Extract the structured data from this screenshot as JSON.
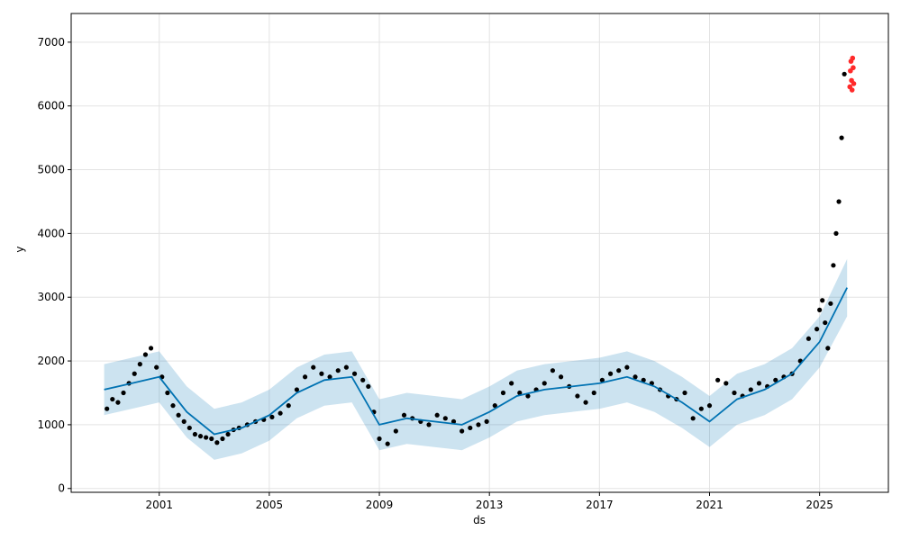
{
  "chart_data": {
    "type": "scatter",
    "title": "",
    "xlabel": "ds",
    "ylabel": "y",
    "xlim": [
      1997.8,
      2027.5
    ],
    "ylim": [
      -60,
      7450
    ],
    "x_ticks": [
      2001,
      2005,
      2009,
      2013,
      2017,
      2021,
      2025
    ],
    "y_ticks": [
      0,
      1000,
      2000,
      3000,
      4000,
      5000,
      6000,
      7000
    ],
    "grid": true,
    "legend": "none",
    "colors": {
      "observed": "#000000",
      "forecast_line": "#0072B2",
      "uncertainty_band": "#0072B2",
      "highlight": "#ff2a2a"
    },
    "series": [
      {
        "kind": "observed",
        "x": [
          1999.1,
          1999.3,
          1999.5,
          1999.7,
          1999.9,
          2000.1,
          2000.3,
          2000.5,
          2000.7,
          2000.9,
          2001.1,
          2001.3,
          2001.5,
          2001.7,
          2001.9,
          2002.1,
          2002.3,
          2002.5,
          2002.7,
          2002.9,
          2003.1,
          2003.3,
          2003.5,
          2003.7,
          2003.9,
          2004.2,
          2004.5,
          2004.8,
          2005.1,
          2005.4,
          2005.7,
          2006.0,
          2006.3,
          2006.6,
          2006.9,
          2007.2,
          2007.5,
          2007.8,
          2008.1,
          2008.4,
          2008.6,
          2008.8,
          2009.0,
          2009.3,
          2009.6,
          2009.9,
          2010.2,
          2010.5,
          2010.8,
          2011.1,
          2011.4,
          2011.7,
          2012.0,
          2012.3,
          2012.6,
          2012.9,
          2013.2,
          2013.5,
          2013.8,
          2014.1,
          2014.4,
          2014.7,
          2015.0,
          2015.3,
          2015.6,
          2015.9,
          2016.2,
          2016.5,
          2016.8,
          2017.1,
          2017.4,
          2017.7,
          2018.0,
          2018.3,
          2018.6,
          2018.9,
          2019.2,
          2019.5,
          2019.8,
          2020.1,
          2020.4,
          2020.7,
          2021.0,
          2021.3,
          2021.6,
          2021.9,
          2022.2,
          2022.5,
          2022.8,
          2023.1,
          2023.4,
          2023.7,
          2024.0,
          2024.3,
          2024.6,
          2024.9,
          2025.0,
          2025.1,
          2025.2,
          2025.3,
          2025.4,
          2025.5,
          2025.6,
          2025.7,
          2025.8,
          2025.9
        ],
        "y": [
          1250,
          1400,
          1350,
          1500,
          1650,
          1800,
          1950,
          2100,
          2200,
          1900,
          1750,
          1500,
          1300,
          1150,
          1050,
          950,
          850,
          820,
          800,
          780,
          720,
          780,
          850,
          920,
          950,
          1000,
          1050,
          1080,
          1120,
          1180,
          1300,
          1550,
          1750,
          1900,
          1800,
          1750,
          1850,
          1900,
          1800,
          1700,
          1600,
          1200,
          780,
          700,
          900,
          1150,
          1100,
          1050,
          1000,
          1150,
          1100,
          1050,
          900,
          950,
          1000,
          1050,
          1300,
          1500,
          1650,
          1500,
          1450,
          1550,
          1650,
          1850,
          1750,
          1600,
          1450,
          1350,
          1500,
          1700,
          1800,
          1850,
          1900,
          1750,
          1700,
          1650,
          1550,
          1450,
          1400,
          1500,
          1100,
          1250,
          1300,
          1700,
          1650,
          1500,
          1450,
          1550,
          1650,
          1600,
          1700,
          1750,
          1800,
          2000,
          2350,
          2500,
          2800,
          2950,
          2600,
          2200,
          2900,
          3500,
          4000,
          4500,
          5500,
          6500
        ]
      },
      {
        "kind": "highlight",
        "x": [
          2026.1,
          2026.12,
          2026.14,
          2026.16,
          2026.18,
          2026.2,
          2026.22,
          2026.24
        ],
        "y": [
          6300,
          6550,
          6700,
          6400,
          6250,
          6750,
          6600,
          6350
        ]
      },
      {
        "kind": "trend",
        "x": [
          1999.0,
          2000.0,
          2001.0,
          2002.0,
          2003.0,
          2004.0,
          2005.0,
          2006.0,
          2007.0,
          2008.0,
          2009.0,
          2010.0,
          2011.0,
          2012.0,
          2013.0,
          2014.0,
          2015.0,
          2016.0,
          2017.0,
          2018.0,
          2019.0,
          2020.0,
          2021.0,
          2022.0,
          2023.0,
          2024.0,
          2025.0,
          2026.0
        ],
        "y": [
          1550,
          1650,
          1750,
          1200,
          850,
          950,
          1150,
          1500,
          1700,
          1750,
          1000,
          1100,
          1050,
          1000,
          1200,
          1450,
          1550,
          1600,
          1650,
          1750,
          1600,
          1350,
          1050,
          1400,
          1550,
          1800,
          2300,
          3150
        ],
        "band_lower": [
          1150,
          1250,
          1350,
          800,
          450,
          550,
          750,
          1100,
          1300,
          1350,
          600,
          700,
          650,
          600,
          800,
          1050,
          1150,
          1200,
          1250,
          1350,
          1200,
          950,
          650,
          1000,
          1150,
          1400,
          1900,
          2700
        ],
        "band_upper": [
          1950,
          2050,
          2150,
          1600,
          1250,
          1350,
          1550,
          1900,
          2100,
          2150,
          1400,
          1500,
          1450,
          1400,
          1600,
          1850,
          1950,
          2000,
          2050,
          2150,
          2000,
          1750,
          1450,
          1800,
          1950,
          2200,
          2700,
          3600
        ]
      }
    ]
  }
}
